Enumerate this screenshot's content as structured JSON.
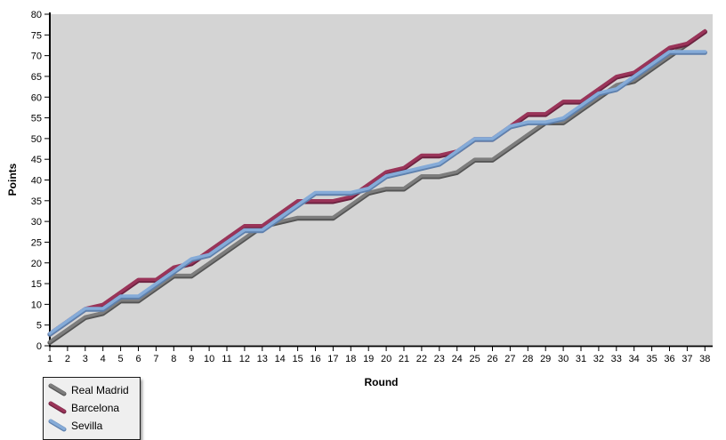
{
  "chart_data": {
    "type": "line",
    "title": "",
    "xlabel": "Round",
    "ylabel": "Points",
    "xlim": [
      1,
      38
    ],
    "ylim": [
      0,
      80
    ],
    "ytick_step": 5,
    "grid": false,
    "legend_position": "bottom-left",
    "plot_bg_color": "#d4d4d4",
    "axis_color": "#000000",
    "rounds": [
      1,
      2,
      3,
      4,
      5,
      6,
      7,
      8,
      9,
      10,
      11,
      12,
      13,
      14,
      15,
      16,
      17,
      18,
      19,
      20,
      21,
      22,
      23,
      24,
      25,
      26,
      27,
      28,
      29,
      30,
      31,
      32,
      33,
      34,
      35,
      36,
      37,
      38
    ],
    "series": [
      {
        "name": "Real Madrid",
        "color": "#7d7d7d",
        "edge_color": "#545454",
        "values": [
          1,
          4,
          7,
          8,
          11,
          11,
          14,
          17,
          17,
          20,
          23,
          26,
          29,
          30,
          31,
          31,
          31,
          34,
          37,
          38,
          38,
          41,
          41,
          42,
          45,
          45,
          48,
          51,
          54,
          54,
          57,
          60,
          63,
          64,
          67,
          70,
          73,
          76
        ]
      },
      {
        "name": "Barcelona",
        "color": "#9a3459",
        "edge_color": "#6c2240",
        "values": [
          3,
          6,
          9,
          10,
          13,
          16,
          16,
          19,
          20,
          23,
          26,
          29,
          29,
          32,
          35,
          35,
          35,
          36,
          39,
          42,
          43,
          46,
          46,
          47,
          50,
          50,
          53,
          56,
          56,
          59,
          59,
          62,
          65,
          66,
          69,
          72,
          73,
          76
        ]
      },
      {
        "name": "Sevilla",
        "color": "#85abd8",
        "edge_color": "#5e80ad",
        "values": [
          3,
          6,
          9,
          9,
          12,
          12,
          15,
          18,
          21,
          22,
          25,
          28,
          28,
          31,
          34,
          37,
          37,
          37,
          38,
          41,
          42,
          43,
          44,
          47,
          50,
          50,
          53,
          54,
          54,
          55,
          58,
          61,
          62,
          65,
          68,
          71,
          71,
          71
        ]
      }
    ]
  },
  "legend": {
    "items": [
      "Real Madrid",
      "Barcelona",
      "Sevilla"
    ]
  }
}
